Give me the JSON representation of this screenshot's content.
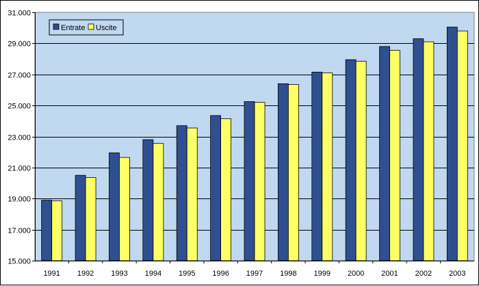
{
  "chart_data": {
    "type": "bar",
    "title": "",
    "xlabel": "",
    "ylabel": "",
    "categories": [
      "1991",
      "1992",
      "1993",
      "1994",
      "1995",
      "1996",
      "1997",
      "1998",
      "1999",
      "2000",
      "2001",
      "2002",
      "2003"
    ],
    "series": [
      {
        "name": "Entrate",
        "color": "#2f4f8f",
        "values": [
          18900,
          20500,
          21950,
          22800,
          23700,
          24350,
          25250,
          26400,
          27150,
          27950,
          28800,
          29300,
          30050
        ]
      },
      {
        "name": "Uscite",
        "color": "#ffff66",
        "values": [
          18850,
          20350,
          21650,
          22550,
          23550,
          24150,
          25200,
          26350,
          27100,
          27850,
          28550,
          29100,
          29800
        ]
      }
    ],
    "ylim": [
      15000,
      31000
    ],
    "yticks": [
      15000,
      17000,
      19000,
      21000,
      23000,
      25000,
      27000,
      29000,
      31000
    ],
    "ytick_labels": [
      "15.000",
      "17.000",
      "19.000",
      "21.000",
      "23.000",
      "25.000",
      "27.000",
      "29.000",
      "31.000"
    ],
    "grid": true,
    "legend_position": "top-left",
    "plot_background": "#c0d8f0"
  }
}
